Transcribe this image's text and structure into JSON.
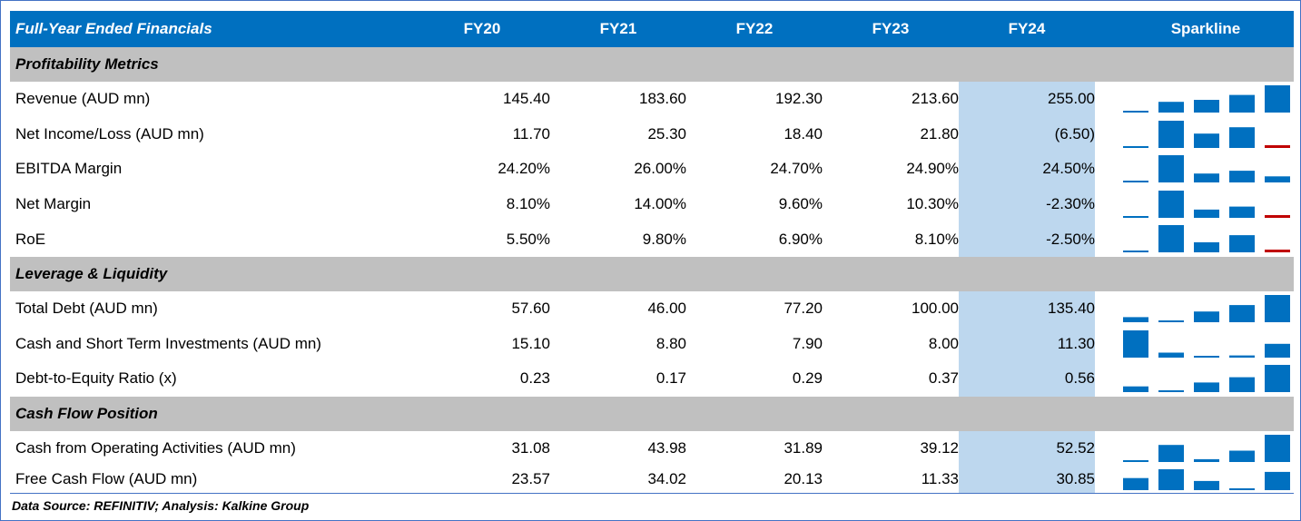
{
  "header": {
    "title": "Full-Year Ended Financials",
    "columns": [
      "FY20",
      "FY21",
      "FY22",
      "FY23",
      "FY24"
    ],
    "sparkline_label": "Sparkline"
  },
  "footer": "Data Source: REFINITIV; Analysis: Kalkine Group",
  "colors": {
    "header": "#0070c0",
    "section": "#c0c0c0",
    "highlight": "#bdd7ee",
    "bar": "#0070c0",
    "negative": "#c00000"
  },
  "chart_data": {
    "type": "table",
    "sections": [
      {
        "name": "Profitability Metrics",
        "rows": [
          {
            "label": "Revenue (AUD mn)",
            "display": [
              "145.40",
              "183.60",
              "192.30",
              "213.60",
              "255.00"
            ],
            "values": [
              145.4,
              183.6,
              192.3,
              213.6,
              255.0
            ]
          },
          {
            "label": "Net Income/Loss (AUD mn)",
            "display": [
              "11.70",
              "25.30",
              "18.40",
              "21.80",
              "(6.50)"
            ],
            "values": [
              11.7,
              25.3,
              18.4,
              21.8,
              -6.5
            ]
          },
          {
            "label": "EBITDA Margin",
            "display": [
              "24.20%",
              "26.00%",
              "24.70%",
              "24.90%",
              "24.50%"
            ],
            "values": [
              24.2,
              26.0,
              24.7,
              24.9,
              24.5
            ]
          },
          {
            "label": "Net Margin",
            "display": [
              "8.10%",
              "14.00%",
              "9.60%",
              "10.30%",
              "-2.30%"
            ],
            "values": [
              8.1,
              14.0,
              9.6,
              10.3,
              -2.3
            ]
          },
          {
            "label": "RoE",
            "display": [
              "5.50%",
              "9.80%",
              "6.90%",
              "8.10%",
              "-2.50%"
            ],
            "values": [
              5.5,
              9.8,
              6.9,
              8.1,
              -2.5
            ]
          }
        ]
      },
      {
        "name": "Leverage & Liquidity",
        "rows": [
          {
            "label": "Total Debt (AUD mn)",
            "display": [
              "57.60",
              "46.00",
              "77.20",
              "100.00",
              "135.40"
            ],
            "values": [
              57.6,
              46.0,
              77.2,
              100.0,
              135.4
            ]
          },
          {
            "label": "Cash and Short Term Investments (AUD mn)",
            "display": [
              "15.10",
              "8.80",
              "7.90",
              "8.00",
              "11.30"
            ],
            "values": [
              15.1,
              8.8,
              7.9,
              8.0,
              11.3
            ]
          },
          {
            "label": "Debt-to-Equity Ratio (x)",
            "display": [
              "0.23",
              "0.17",
              "0.29",
              "0.37",
              "0.56"
            ],
            "values": [
              0.23,
              0.17,
              0.29,
              0.37,
              0.56
            ]
          }
        ]
      },
      {
        "name": "Cash Flow Position",
        "rows": [
          {
            "label": "Cash from Operating Activities (AUD mn)",
            "display": [
              "31.08",
              "43.98",
              "31.89",
              "39.12",
              "52.52"
            ],
            "values": [
              31.08,
              43.98,
              31.89,
              39.12,
              52.52
            ]
          },
          {
            "label": "Free Cash Flow (AUD mn)",
            "display": [
              "23.57",
              "34.02",
              "20.13",
              "11.33",
              "30.85"
            ],
            "values": [
              23.57,
              34.02,
              20.13,
              11.33,
              30.85
            ]
          }
        ]
      }
    ]
  }
}
